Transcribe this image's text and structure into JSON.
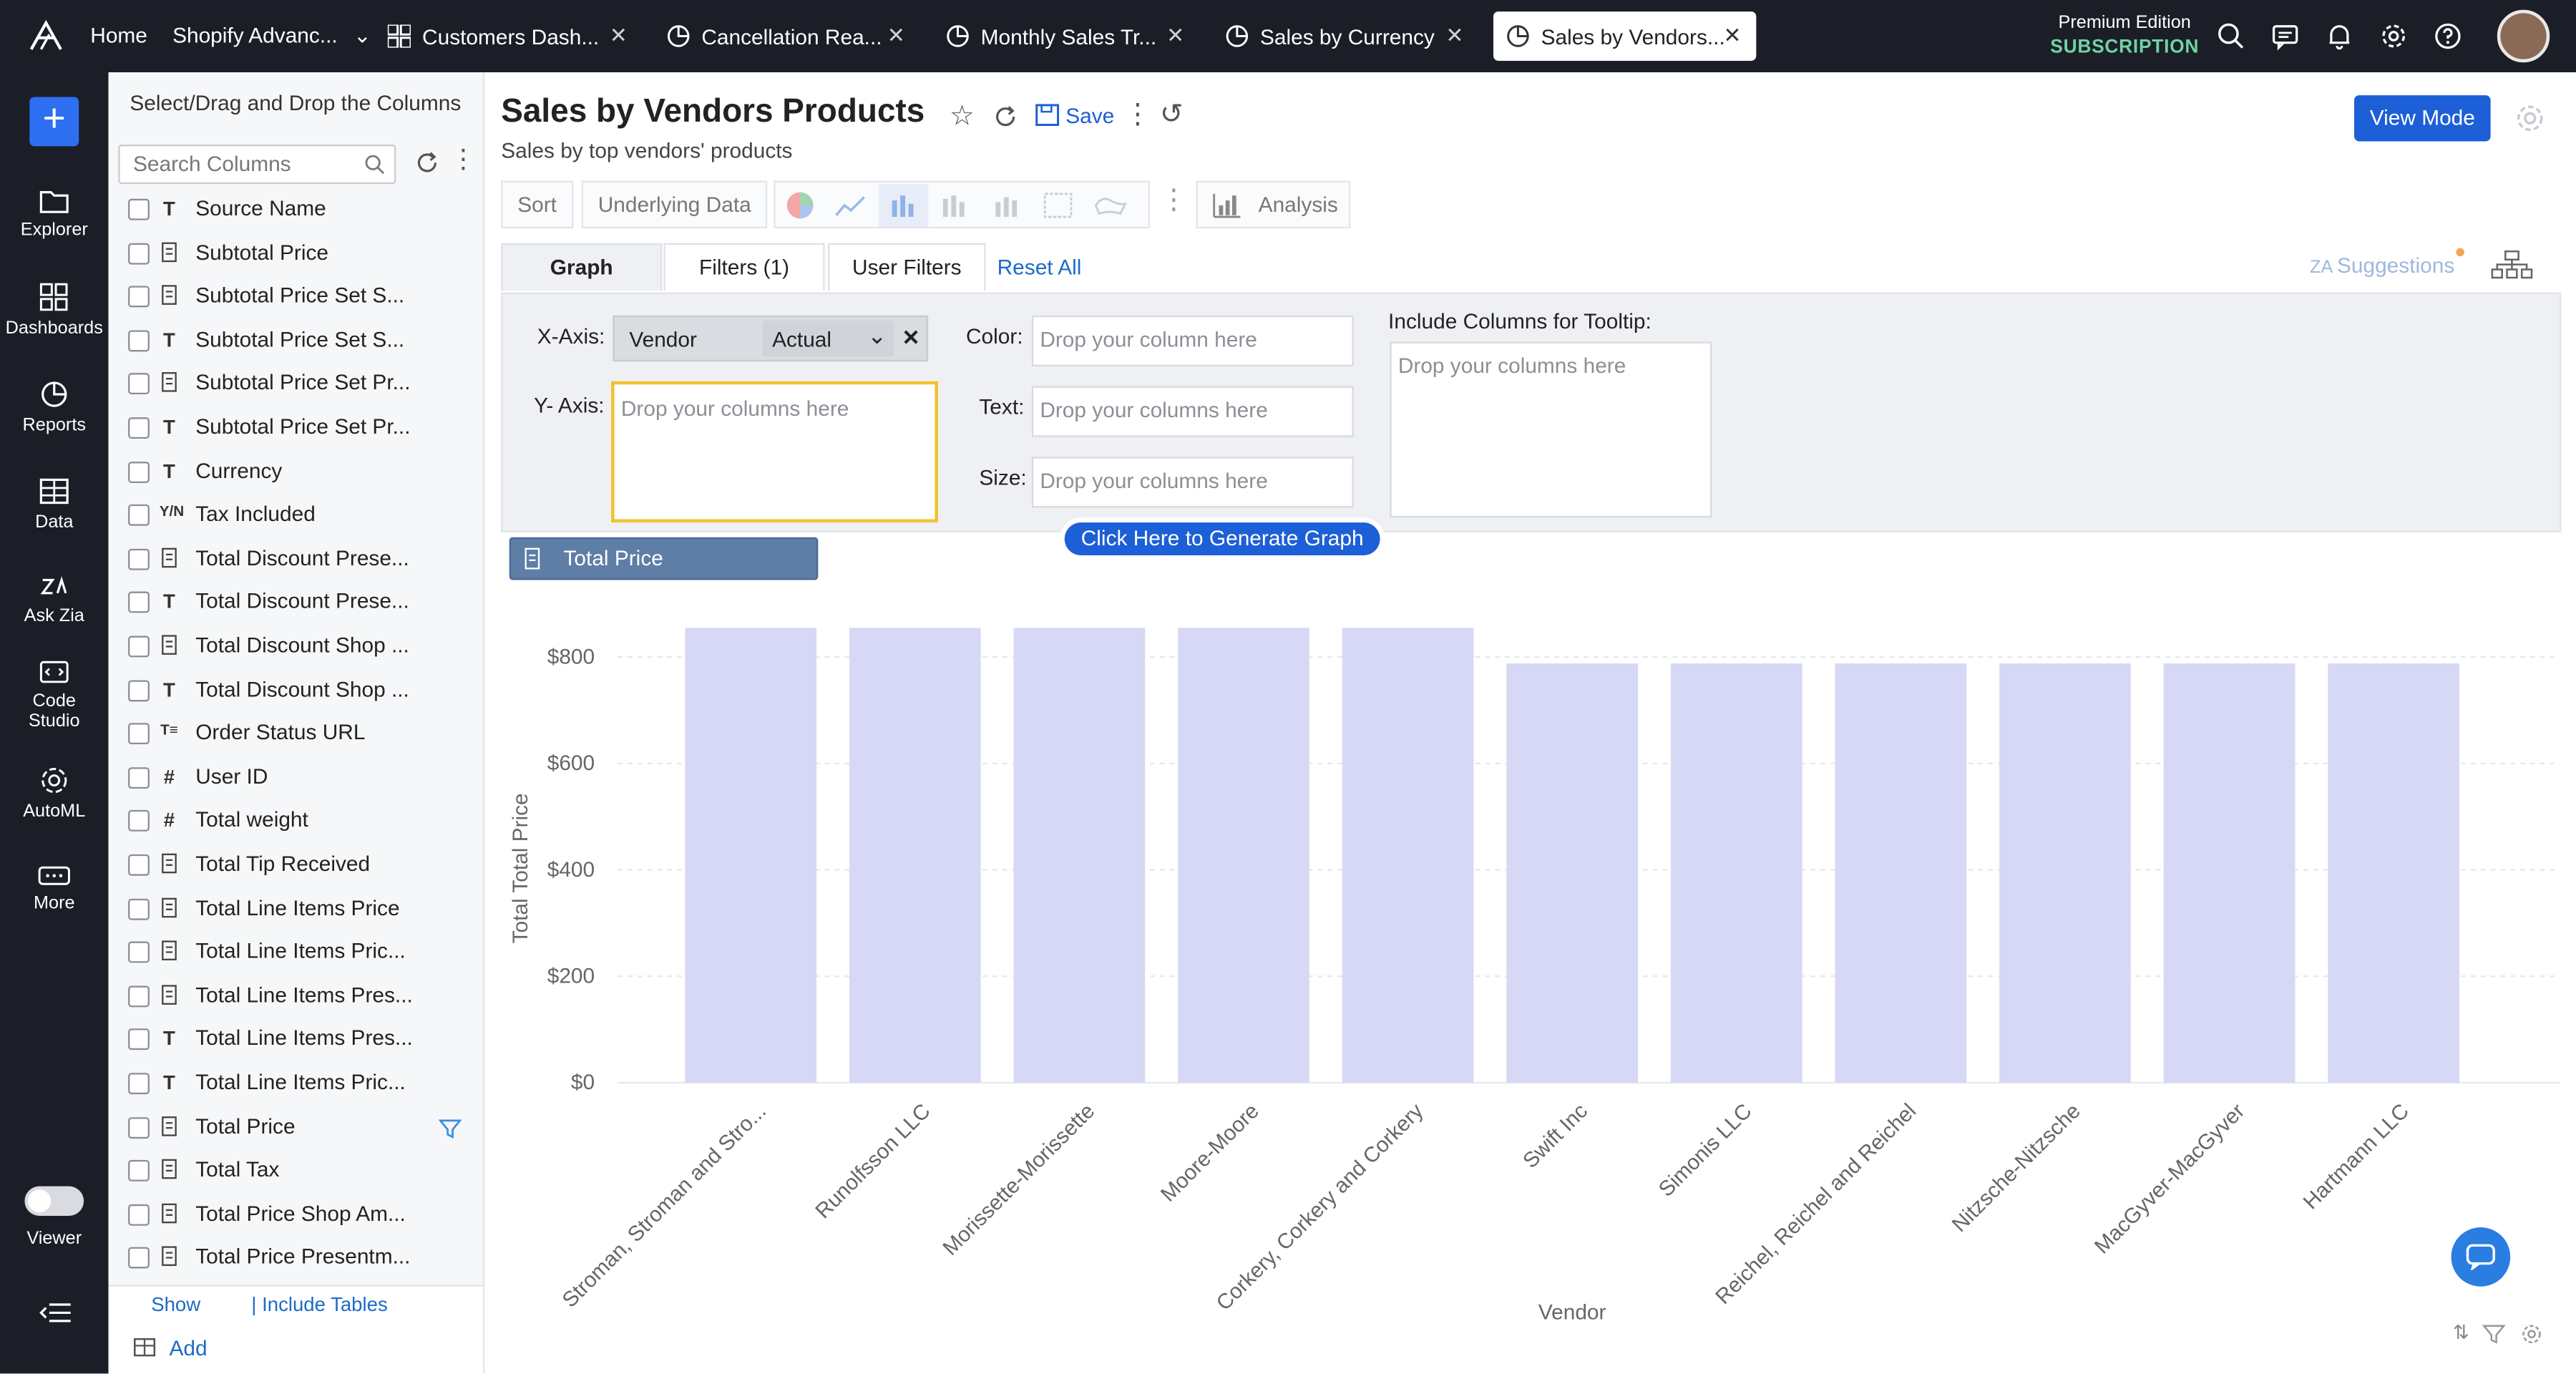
{
  "nav": {
    "home": "Home",
    "workspace": "Shopify Advanc...",
    "tabs": [
      {
        "label": "Customers Dash..."
      },
      {
        "label": "Cancellation Rea..."
      },
      {
        "label": "Monthly Sales Tr..."
      },
      {
        "label": "Sales by Currency"
      },
      {
        "label": "Sales by Vendors..."
      }
    ],
    "edition": "Premium Edition",
    "subscription": "SUBSCRIPTION"
  },
  "rail": {
    "items": [
      "Explorer",
      "Dashboards",
      "Reports",
      "Data",
      "Ask Zia",
      "Code Studio",
      "AutoML",
      "More",
      "Viewer"
    ]
  },
  "column_panel": {
    "title": "Select/Drag and Drop the Columns",
    "search_placeholder": "Search Columns",
    "columns": [
      {
        "label": "Source Name",
        "type": "T"
      },
      {
        "label": "Subtotal Price",
        "type": "num"
      },
      {
        "label": "Subtotal Price Set S...",
        "type": "num"
      },
      {
        "label": "Subtotal Price Set S...",
        "type": "T"
      },
      {
        "label": "Subtotal Price Set Pr...",
        "type": "num"
      },
      {
        "label": "Subtotal Price Set Pr...",
        "type": "T"
      },
      {
        "label": "Currency",
        "type": "T"
      },
      {
        "label": "Tax Included",
        "type": "Y/N"
      },
      {
        "label": "Total Discount Prese...",
        "type": "num"
      },
      {
        "label": "Total Discount Prese...",
        "type": "T"
      },
      {
        "label": "Total Discount Shop ...",
        "type": "num"
      },
      {
        "label": "Total Discount Shop ...",
        "type": "T"
      },
      {
        "label": "Order Status URL",
        "type": "T≡"
      },
      {
        "label": "User ID",
        "type": "#"
      },
      {
        "label": "Total weight",
        "type": "#"
      },
      {
        "label": "Total Tip Received",
        "type": "num"
      },
      {
        "label": "Total Line Items Price",
        "type": "num"
      },
      {
        "label": "Total Line Items Pric...",
        "type": "num"
      },
      {
        "label": "Total Line Items Pres...",
        "type": "num"
      },
      {
        "label": "Total Line Items Pres...",
        "type": "T"
      },
      {
        "label": "Total Line Items Pric...",
        "type": "T"
      },
      {
        "label": "Total Price",
        "type": "num"
      },
      {
        "label": "Total Tax",
        "type": "num"
      },
      {
        "label": "Total Price Shop Am...",
        "type": "num"
      },
      {
        "label": "Total Price Presentm...",
        "type": "num"
      }
    ],
    "show": "Show",
    "include_tables": "| Include Tables",
    "add": "Add"
  },
  "report": {
    "title": "Sales by Vendors Products",
    "subtitle": "Sales by top vendors' products",
    "save": "Save",
    "view_mode": "View Mode"
  },
  "toolbar": {
    "sort": "Sort",
    "underlying_data": "Underlying Data",
    "analysis": "Analysis"
  },
  "designer": {
    "tabs": {
      "graph": "Graph",
      "filters": "Filters  (1)",
      "user_filters": "User Filters"
    },
    "reset_all": "Reset All",
    "suggestions": "Suggestions",
    "x_axis_label": "X-Axis:",
    "y_axis_label": "Y- Axis:",
    "color_label": "Color:",
    "text_label": "Text:",
    "size_label": "Size:",
    "tooltip_label": "Include Columns for Tooltip:",
    "x_axis_column": "Vendor",
    "x_axis_agg": "Actual",
    "drop_column": "Drop your column here",
    "drop_columns": "Drop your columns here",
    "dragging": "Total Price",
    "generate": "Click Here to Generate Graph"
  },
  "chart_data": {
    "type": "bar",
    "xlabel": "Vendor",
    "ylabel": "Total Total Price",
    "ylim": [
      0,
      880
    ],
    "yticks": [
      "$0",
      "$200",
      "$400",
      "$600",
      "$800"
    ],
    "categories": [
      "Stroman, Stroman and Stro...",
      "Runolfsson LLC",
      "Morissette-Morissette",
      "Moore-Moore",
      "Corkery, Corkery and Corkery",
      "Swift Inc",
      "Simonis LLC",
      "Reichel, Reichel and Reichel",
      "Nitzsche-Nitzsche",
      "MacGyver-MacGyver",
      "Hartmann LLC"
    ],
    "values": [
      855,
      855,
      855,
      855,
      855,
      788,
      788,
      788,
      788,
      788,
      788
    ],
    "bar_color": "#d6d8f5"
  }
}
